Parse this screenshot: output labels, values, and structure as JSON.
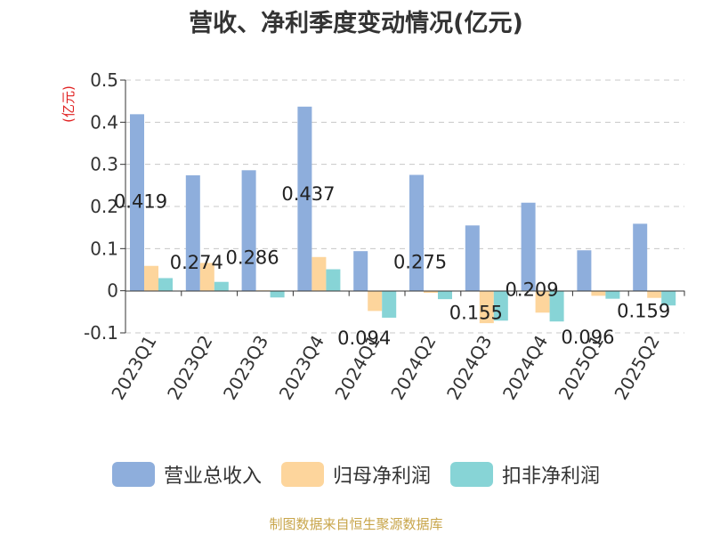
{
  "title": "营收、净利季度变动情况(亿元)",
  "source": "制图数据来自恒生聚源数据库",
  "colors": {
    "revenue": "#8eaedc",
    "net_profit": "#fdd59c",
    "deducted": "#87d4d6",
    "unit_label": "#e02020"
  },
  "chart_data": {
    "type": "bar",
    "title": "营收、净利季度变动情况(亿元)",
    "ylabel": "(亿元)",
    "ylim": [
      -0.1,
      0.5
    ],
    "yticks": [
      {
        "value": -0.1,
        "label": "-0.1"
      },
      {
        "value": 0,
        "label": "0"
      },
      {
        "value": 0.1,
        "label": "0.1"
      },
      {
        "value": 0.2,
        "label": "0.2"
      },
      {
        "value": 0.3,
        "label": "0.3"
      },
      {
        "value": 0.4,
        "label": "0.4"
      },
      {
        "value": 0.5,
        "label": "0.5"
      }
    ],
    "grid": true,
    "legend_position": "bottom",
    "categories": [
      "2023Q1",
      "2023Q2",
      "2023Q3",
      "2023Q4",
      "2024Q1",
      "2024Q2",
      "2024Q3",
      "2024Q4",
      "2025Q1",
      "2025Q2"
    ],
    "series": [
      {
        "name": "营业总收入",
        "color": "#8eaedc",
        "values": [
          0.419,
          0.274,
          0.286,
          0.437,
          0.094,
          0.275,
          0.155,
          0.209,
          0.096,
          0.159
        ],
        "data_labels": [
          "0.419",
          "0.274",
          "0.286",
          "0.437",
          "0.094",
          "0.275",
          "0.155",
          "0.209",
          "0.096",
          "0.159"
        ]
      },
      {
        "name": "归母净利润",
        "color": "#fdd59c",
        "values": [
          0.059,
          0.066,
          0.001,
          0.08,
          -0.048,
          -0.005,
          -0.077,
          -0.052,
          -0.012,
          -0.017
        ]
      },
      {
        "name": "扣非净利润",
        "color": "#87d4d6",
        "values": [
          0.03,
          0.021,
          -0.016,
          0.051,
          -0.064,
          -0.02,
          -0.071,
          -0.073,
          -0.019,
          -0.035
        ]
      }
    ]
  }
}
